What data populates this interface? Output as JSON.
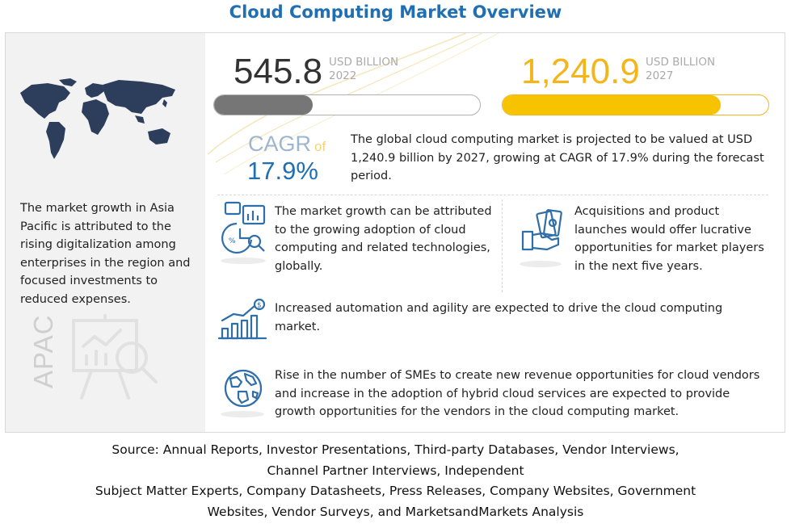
{
  "header": {
    "title": "Cloud Computing Market Overview"
  },
  "market": {
    "value_2022": "545.8",
    "unit_2022": "USD BILLION",
    "year_2022": "2022",
    "progress_2022": 0.37,
    "value_2027": "1,240.9",
    "unit_2027": "USD BILLION",
    "year_2027": "2027",
    "progress_2027": 0.82
  },
  "cagr": {
    "label": "CAGR",
    "of": "of",
    "value": "17.9%"
  },
  "summary": "The global cloud computing market is projected to be valued at USD 1,240.9 billion by 2027, growing at CAGR of 17.9% during the forecast period.",
  "asia": {
    "text": "The market growth in Asia Pacific is attributed to the rising digitalization among enterprises in the region and focused investments to reduced expenses.",
    "region_label": "APAC"
  },
  "drivers": [
    {
      "text": "The market growth can be attributed to the growing adoption of cloud computing and related technologies, globally.",
      "icon": "analytics-icon"
    },
    {
      "text": "Acquisitions and product launches would offer lucrative opportunities for market players in the next five years.",
      "icon": "money-hand-icon"
    },
    {
      "text": "Increased automation and agility are expected to drive the cloud computing market.",
      "icon": "growth-chart-icon"
    },
    {
      "text": "Rise in the number of SMEs to create new revenue opportunities for cloud vendors and increase in the adoption of hybrid cloud services are expected to provide growth opportunities for the vendors in the cloud computing market.",
      "icon": "globe-icon"
    }
  ],
  "source": {
    "line1": "Source: Annual Reports, Investor Presentations, Third-party Databases, Vendor Interviews,",
    "line2": "Channel Partner Interviews, Independent",
    "line3": "Subject Matter Experts, Company Datasheets, Press Releases, Company Websites, Government",
    "line4": "Websites, Vendor Surveys, and MarketsandMarkets Analysis"
  },
  "colors": {
    "title": "#1f6fb2",
    "accent_yellow": "#f7c200",
    "bar_gray": "#767676",
    "icon_blue": "#2f6ea8"
  }
}
